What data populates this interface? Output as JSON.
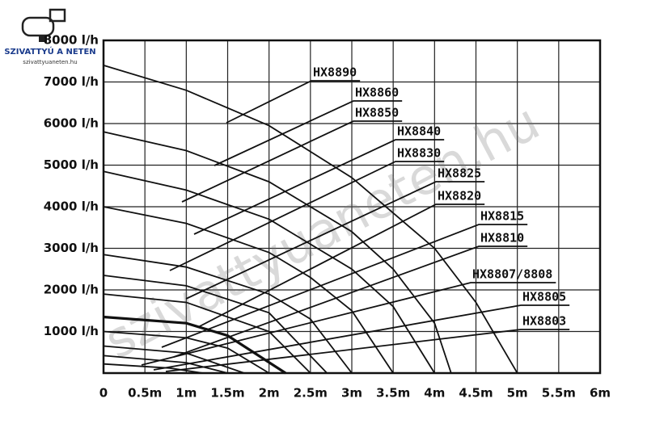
{
  "logo": {
    "title": "SZIVATTYÚ A NETEN",
    "subtitle": "szivattyuaneten.hu"
  },
  "watermark": "szivattyuaneten.hu",
  "chart_data": {
    "type": "line",
    "grid": true,
    "color": "#111111",
    "xlim": [
      0,
      6
    ],
    "xticks": [
      0,
      {
        "value": 0.5,
        "label": "0.5m"
      },
      {
        "value": 1,
        "label": "1m"
      },
      {
        "value": 1.5,
        "label": "1.5m"
      },
      {
        "value": 2,
        "label": "2m"
      },
      {
        "value": 2.5,
        "label": "2.5m"
      },
      {
        "value": 3,
        "label": "3m"
      },
      {
        "value": 3.5,
        "label": "3.5m"
      },
      {
        "value": 4,
        "label": "4m"
      },
      {
        "value": 4.5,
        "label": "4.5m"
      },
      {
        "value": 5,
        "label": "5m"
      },
      {
        "value": 5.5,
        "label": "5.5m"
      },
      {
        "value": 6,
        "label": "6m"
      }
    ],
    "ylim": [
      0,
      8000
    ],
    "yticks": [
      {
        "value": 1000,
        "label": "1000 l/h"
      },
      {
        "value": 2000,
        "label": "2000 l/h"
      },
      {
        "value": 3000,
        "label": "3000 l/h"
      },
      {
        "value": 4000,
        "label": "4000 l/h"
      },
      {
        "value": 5000,
        "label": "5000 l/h"
      },
      {
        "value": 6000,
        "label": "6000 l/h"
      },
      {
        "value": 7000,
        "label": "7000 l/h"
      },
      {
        "value": 8000,
        "label": "8000 l/h"
      }
    ],
    "series": [
      {
        "name": "HX8890",
        "x": [
          0,
          1,
          2,
          3,
          4,
          4.5,
          5
        ],
        "values": [
          7400,
          6800,
          5950,
          4700,
          3000,
          1700,
          0
        ]
      },
      {
        "name": "HX8860",
        "x": [
          0,
          1,
          2,
          3,
          3.5,
          4,
          4.2
        ],
        "values": [
          5800,
          5350,
          4600,
          3400,
          2500,
          1200,
          0
        ]
      },
      {
        "name": "HX8850",
        "x": [
          0,
          1,
          2,
          3,
          3.5,
          4
        ],
        "values": [
          4850,
          4400,
          3700,
          2500,
          1600,
          0
        ]
      },
      {
        "name": "HX8840",
        "x": [
          0,
          1,
          2,
          2.5,
          3,
          3.5
        ],
        "values": [
          4000,
          3600,
          2900,
          2300,
          1500,
          0
        ]
      },
      {
        "name": "HX8830",
        "x": [
          0,
          1,
          2,
          2.5,
          3
        ],
        "values": [
          2850,
          2550,
          1900,
          1300,
          0
        ]
      },
      {
        "name": "HX8825",
        "x": [
          0,
          1,
          2,
          2.7
        ],
        "values": [
          2350,
          2100,
          1450,
          0
        ]
      },
      {
        "name": "HX8820",
        "x": [
          0,
          1,
          2,
          2.5
        ],
        "values": [
          1900,
          1700,
          1000,
          0
        ]
      },
      {
        "name": "HX8815",
        "x": [
          0,
          1,
          1.5,
          2.2
        ],
        "values": [
          1350,
          1200,
          900,
          0
        ]
      },
      {
        "name": "HX8810",
        "x": [
          0,
          1,
          1.5,
          2
        ],
        "values": [
          1000,
          850,
          600,
          0
        ]
      },
      {
        "name": "HX8807/8808",
        "x": [
          0,
          1,
          1.7
        ],
        "values": [
          650,
          480,
          0
        ]
      },
      {
        "name": "HX8805",
        "x": [
          0,
          1,
          1.5
        ],
        "values": [
          420,
          250,
          0
        ]
      },
      {
        "name": "HX8803",
        "x": [
          0,
          0.8,
          1.2
        ],
        "values": [
          220,
          120,
          0
        ]
      }
    ]
  }
}
